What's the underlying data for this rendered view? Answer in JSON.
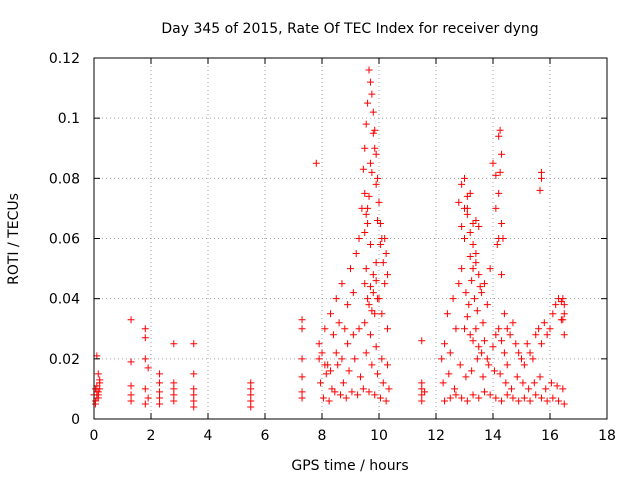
{
  "chart_data": {
    "type": "scatter",
    "title": "Day 345 of 2015, Rate Of TEC Index for receiver dyng",
    "xlabel": "GPS time / hours",
    "ylabel": "ROTI / TECUs",
    "xlim": [
      0,
      18
    ],
    "ylim": [
      0,
      0.12
    ],
    "xticks": [
      0,
      2,
      4,
      6,
      8,
      10,
      12,
      14,
      16,
      18
    ],
    "xtick_labels": [
      "0",
      "2",
      "4",
      "6",
      "8",
      "10",
      "12",
      "14",
      "16",
      "18"
    ],
    "yticks": [
      0,
      0.02,
      0.04,
      0.06,
      0.08,
      0.1,
      0.12
    ],
    "ytick_labels": [
      "0",
      "0.02",
      "0.04",
      "0.06",
      "0.08",
      "0.1",
      "0.12"
    ],
    "grid": true,
    "marker": "+",
    "marker_color": "#ff0000",
    "series": [
      {
        "name": "ROTI",
        "x": [
          0.0,
          0.05,
          0.1,
          0.15,
          0.2,
          0.05,
          0.1,
          0.15,
          0.1,
          0.2,
          0.15,
          0.05,
          0.1,
          0.2,
          0.15,
          1.3,
          1.3,
          1.3,
          1.3,
          1.3,
          1.8,
          1.8,
          1.8,
          1.8,
          1.9,
          1.8,
          1.9,
          2.3,
          2.3,
          2.3,
          2.3,
          2.3,
          2.8,
          2.8,
          2.8,
          2.8,
          2.8,
          3.5,
          3.5,
          3.5,
          3.5,
          3.5,
          3.5,
          5.5,
          5.5,
          5.5,
          5.5,
          5.5,
          7.3,
          7.3,
          7.3,
          7.3,
          7.3,
          7.3,
          7.8,
          7.9,
          8.0,
          8.1,
          8.2,
          8.3,
          8.4,
          8.5,
          8.6,
          8.7,
          8.8,
          8.9,
          9.0,
          9.1,
          9.2,
          9.3,
          9.4,
          9.5,
          9.6,
          9.7,
          9.8,
          9.9,
          10.0,
          10.1,
          10.2,
          10.3,
          7.95,
          8.15,
          8.35,
          8.55,
          8.75,
          8.95,
          9.15,
          9.35,
          9.55,
          9.75,
          9.95,
          10.15,
          10.35,
          8.05,
          8.25,
          8.45,
          8.65,
          8.85,
          9.05,
          9.25,
          9.45,
          9.65,
          9.85,
          10.05,
          10.25,
          7.9,
          8.1,
          8.3,
          8.5,
          8.7,
          8.9,
          9.1,
          9.3,
          9.5,
          9.7,
          9.9,
          10.1,
          10.3,
          9.45,
          9.5,
          9.55,
          9.6,
          9.65,
          9.7,
          9.75,
          9.8,
          9.85,
          9.9,
          9.95,
          10.0,
          10.05,
          10.1,
          9.6,
          9.7,
          9.8,
          9.9,
          9.5,
          9.55,
          9.65,
          9.75,
          9.85,
          9.95,
          10.05,
          10.15,
          10.2,
          10.25,
          10.3,
          9.5,
          9.55,
          9.6,
          9.65,
          9.7,
          9.75,
          9.8,
          9.85,
          9.9,
          9.95,
          11.5,
          11.5,
          11.5,
          11.5,
          11.5,
          11.6,
          12.2,
          12.3,
          12.4,
          12.5,
          12.6,
          12.7,
          12.8,
          12.9,
          13.0,
          13.1,
          13.2,
          13.3,
          13.4,
          13.5,
          13.6,
          13.7,
          13.8,
          13.9,
          14.0,
          14.1,
          14.2,
          14.3,
          14.4,
          14.5,
          14.6,
          14.7,
          14.8,
          14.9,
          15.0,
          15.1,
          15.2,
          15.3,
          15.4,
          15.5,
          15.6,
          15.7,
          15.8,
          15.9,
          16.0,
          16.1,
          16.2,
          16.3,
          16.4,
          16.5,
          12.25,
          12.45,
          12.65,
          12.85,
          13.05,
          13.25,
          13.45,
          13.65,
          13.85,
          14.05,
          14.25,
          14.45,
          14.65,
          14.85,
          15.05,
          15.25,
          15.45,
          15.65,
          15.85,
          16.05,
          16.25,
          16.45,
          12.3,
          12.5,
          12.7,
          12.9,
          13.1,
          13.3,
          13.5,
          13.7,
          13.9,
          14.1,
          14.3,
          14.5,
          14.7,
          14.9,
          15.1,
          15.3,
          15.5,
          15.7,
          15.9,
          16.1,
          16.3,
          16.5,
          12.8,
          12.9,
          13.0,
          13.1,
          13.2,
          13.3,
          13.4,
          13.5,
          13.1,
          13.2,
          13.0,
          12.9,
          13.3,
          13.4,
          14.2,
          14.25,
          14.3,
          14.25,
          14.2,
          14.3,
          14.35,
          14.15,
          14.1,
          15.7,
          15.7,
          15.65,
          16.4,
          16.45,
          16.5,
          16.5,
          16.45,
          13.0,
          13.1,
          13.2,
          13.3,
          13.4,
          13.5,
          13.6,
          13.7,
          13.8,
          14.0,
          14.1,
          14.2,
          14.3,
          14.4,
          14.5,
          13.05,
          13.15,
          13.25,
          13.35,
          13.45,
          13.55,
          13.65
        ],
        "y": [
          0.008,
          0.01,
          0.009,
          0.007,
          0.012,
          0.006,
          0.011,
          0.009,
          0.021,
          0.013,
          0.015,
          0.005,
          0.007,
          0.01,
          0.008,
          0.033,
          0.019,
          0.011,
          0.008,
          0.006,
          0.03,
          0.027,
          0.02,
          0.01,
          0.007,
          0.005,
          0.017,
          0.015,
          0.012,
          0.009,
          0.007,
          0.005,
          0.025,
          0.012,
          0.01,
          0.008,
          0.006,
          0.025,
          0.015,
          0.01,
          0.008,
          0.006,
          0.004,
          0.012,
          0.01,
          0.008,
          0.006,
          0.004,
          0.033,
          0.03,
          0.02,
          0.014,
          0.009,
          0.007,
          0.085,
          0.025,
          0.022,
          0.03,
          0.018,
          0.035,
          0.028,
          0.04,
          0.032,
          0.045,
          0.03,
          0.038,
          0.05,
          0.042,
          0.055,
          0.06,
          0.07,
          0.075,
          0.065,
          0.058,
          0.048,
          0.052,
          0.04,
          0.035,
          0.045,
          0.03,
          0.012,
          0.015,
          0.01,
          0.018,
          0.012,
          0.016,
          0.02,
          0.014,
          0.022,
          0.018,
          0.015,
          0.012,
          0.01,
          0.007,
          0.006,
          0.009,
          0.008,
          0.007,
          0.009,
          0.008,
          0.01,
          0.009,
          0.008,
          0.007,
          0.006,
          0.02,
          0.018,
          0.016,
          0.022,
          0.02,
          0.025,
          0.028,
          0.03,
          0.032,
          0.028,
          0.024,
          0.02,
          0.018,
          0.083,
          0.09,
          0.098,
          0.105,
          0.116,
          0.112,
          0.108,
          0.102,
          0.096,
          0.088,
          0.08,
          0.072,
          0.065,
          0.06,
          0.07,
          0.085,
          0.095,
          0.078,
          0.062,
          0.068,
          0.074,
          0.082,
          0.09,
          0.066,
          0.058,
          0.052,
          0.06,
          0.055,
          0.048,
          0.045,
          0.05,
          0.04,
          0.038,
          0.044,
          0.036,
          0.042,
          0.035,
          0.046,
          0.04,
          0.012,
          0.01,
          0.008,
          0.006,
          0.026,
          0.009,
          0.02,
          0.025,
          0.035,
          0.022,
          0.04,
          0.03,
          0.045,
          0.05,
          0.06,
          0.07,
          0.075,
          0.065,
          0.055,
          0.048,
          0.042,
          0.045,
          0.038,
          0.05,
          0.085,
          0.07,
          0.06,
          0.048,
          0.035,
          0.03,
          0.028,
          0.032,
          0.025,
          0.022,
          0.02,
          0.018,
          0.025,
          0.022,
          0.02,
          0.028,
          0.03,
          0.025,
          0.032,
          0.028,
          0.03,
          0.035,
          0.038,
          0.04,
          0.033,
          0.028,
          0.012,
          0.015,
          0.01,
          0.018,
          0.014,
          0.016,
          0.02,
          0.014,
          0.018,
          0.016,
          0.015,
          0.012,
          0.01,
          0.014,
          0.012,
          0.01,
          0.012,
          0.014,
          0.01,
          0.012,
          0.011,
          0.01,
          0.006,
          0.007,
          0.008,
          0.007,
          0.006,
          0.008,
          0.007,
          0.009,
          0.008,
          0.007,
          0.006,
          0.008,
          0.007,
          0.006,
          0.007,
          0.006,
          0.008,
          0.007,
          0.006,
          0.007,
          0.006,
          0.005,
          0.072,
          0.078,
          0.08,
          0.068,
          0.062,
          0.058,
          0.066,
          0.064,
          0.074,
          0.054,
          0.07,
          0.064,
          0.05,
          0.052,
          0.094,
          0.096,
          0.088,
          0.082,
          0.075,
          0.065,
          0.06,
          0.058,
          0.081,
          0.082,
          0.08,
          0.076,
          0.039,
          0.04,
          0.038,
          0.035,
          0.033,
          0.03,
          0.034,
          0.028,
          0.026,
          0.03,
          0.024,
          0.022,
          0.026,
          0.02,
          0.024,
          0.028,
          0.03,
          0.026,
          0.022,
          0.018,
          0.042,
          0.038,
          0.046,
          0.04,
          0.036,
          0.044,
          0.032
        ]
      }
    ]
  }
}
